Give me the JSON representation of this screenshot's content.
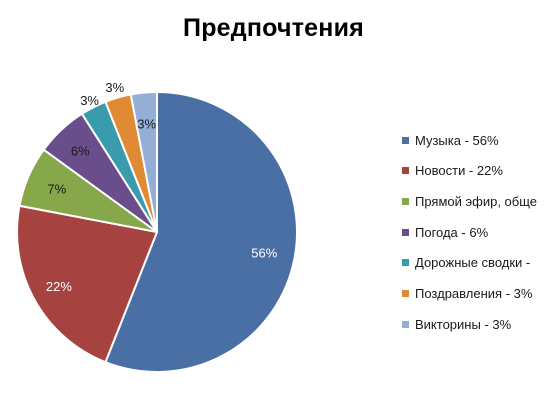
{
  "chart_data": {
    "type": "pie",
    "title": "Предпочтения",
    "slices": [
      {
        "label": "Музыка",
        "legend": "Музыка - 56%",
        "value": 56,
        "data_label": "56%",
        "color": "#4A6FA5"
      },
      {
        "label": "Новости",
        "legend": "Новости - 22%",
        "value": 22,
        "data_label": "22%",
        "color": "#A6423F"
      },
      {
        "label": "Прямой эфир, обще",
        "legend": "Прямой эфир, обще",
        "value": 7,
        "data_label": "7%",
        "color": "#86A84A"
      },
      {
        "label": "Погода",
        "legend": "Погода - 6%",
        "value": 6,
        "data_label": "6%",
        "color": "#6A4E8C"
      },
      {
        "label": "Дорожные сводки",
        "legend": "Дорожные сводки -",
        "value": 3,
        "data_label": "3%",
        "color": "#3A9AAE"
      },
      {
        "label": "Поздравления",
        "legend": "Поздравления - 3%",
        "value": 3,
        "data_label": "3%",
        "color": "#E08A33"
      },
      {
        "label": "Викторины",
        "legend": "Викторины - 3%",
        "value": 3,
        "data_label": "3%",
        "color": "#94AED6"
      }
    ],
    "legend_position": "right"
  }
}
